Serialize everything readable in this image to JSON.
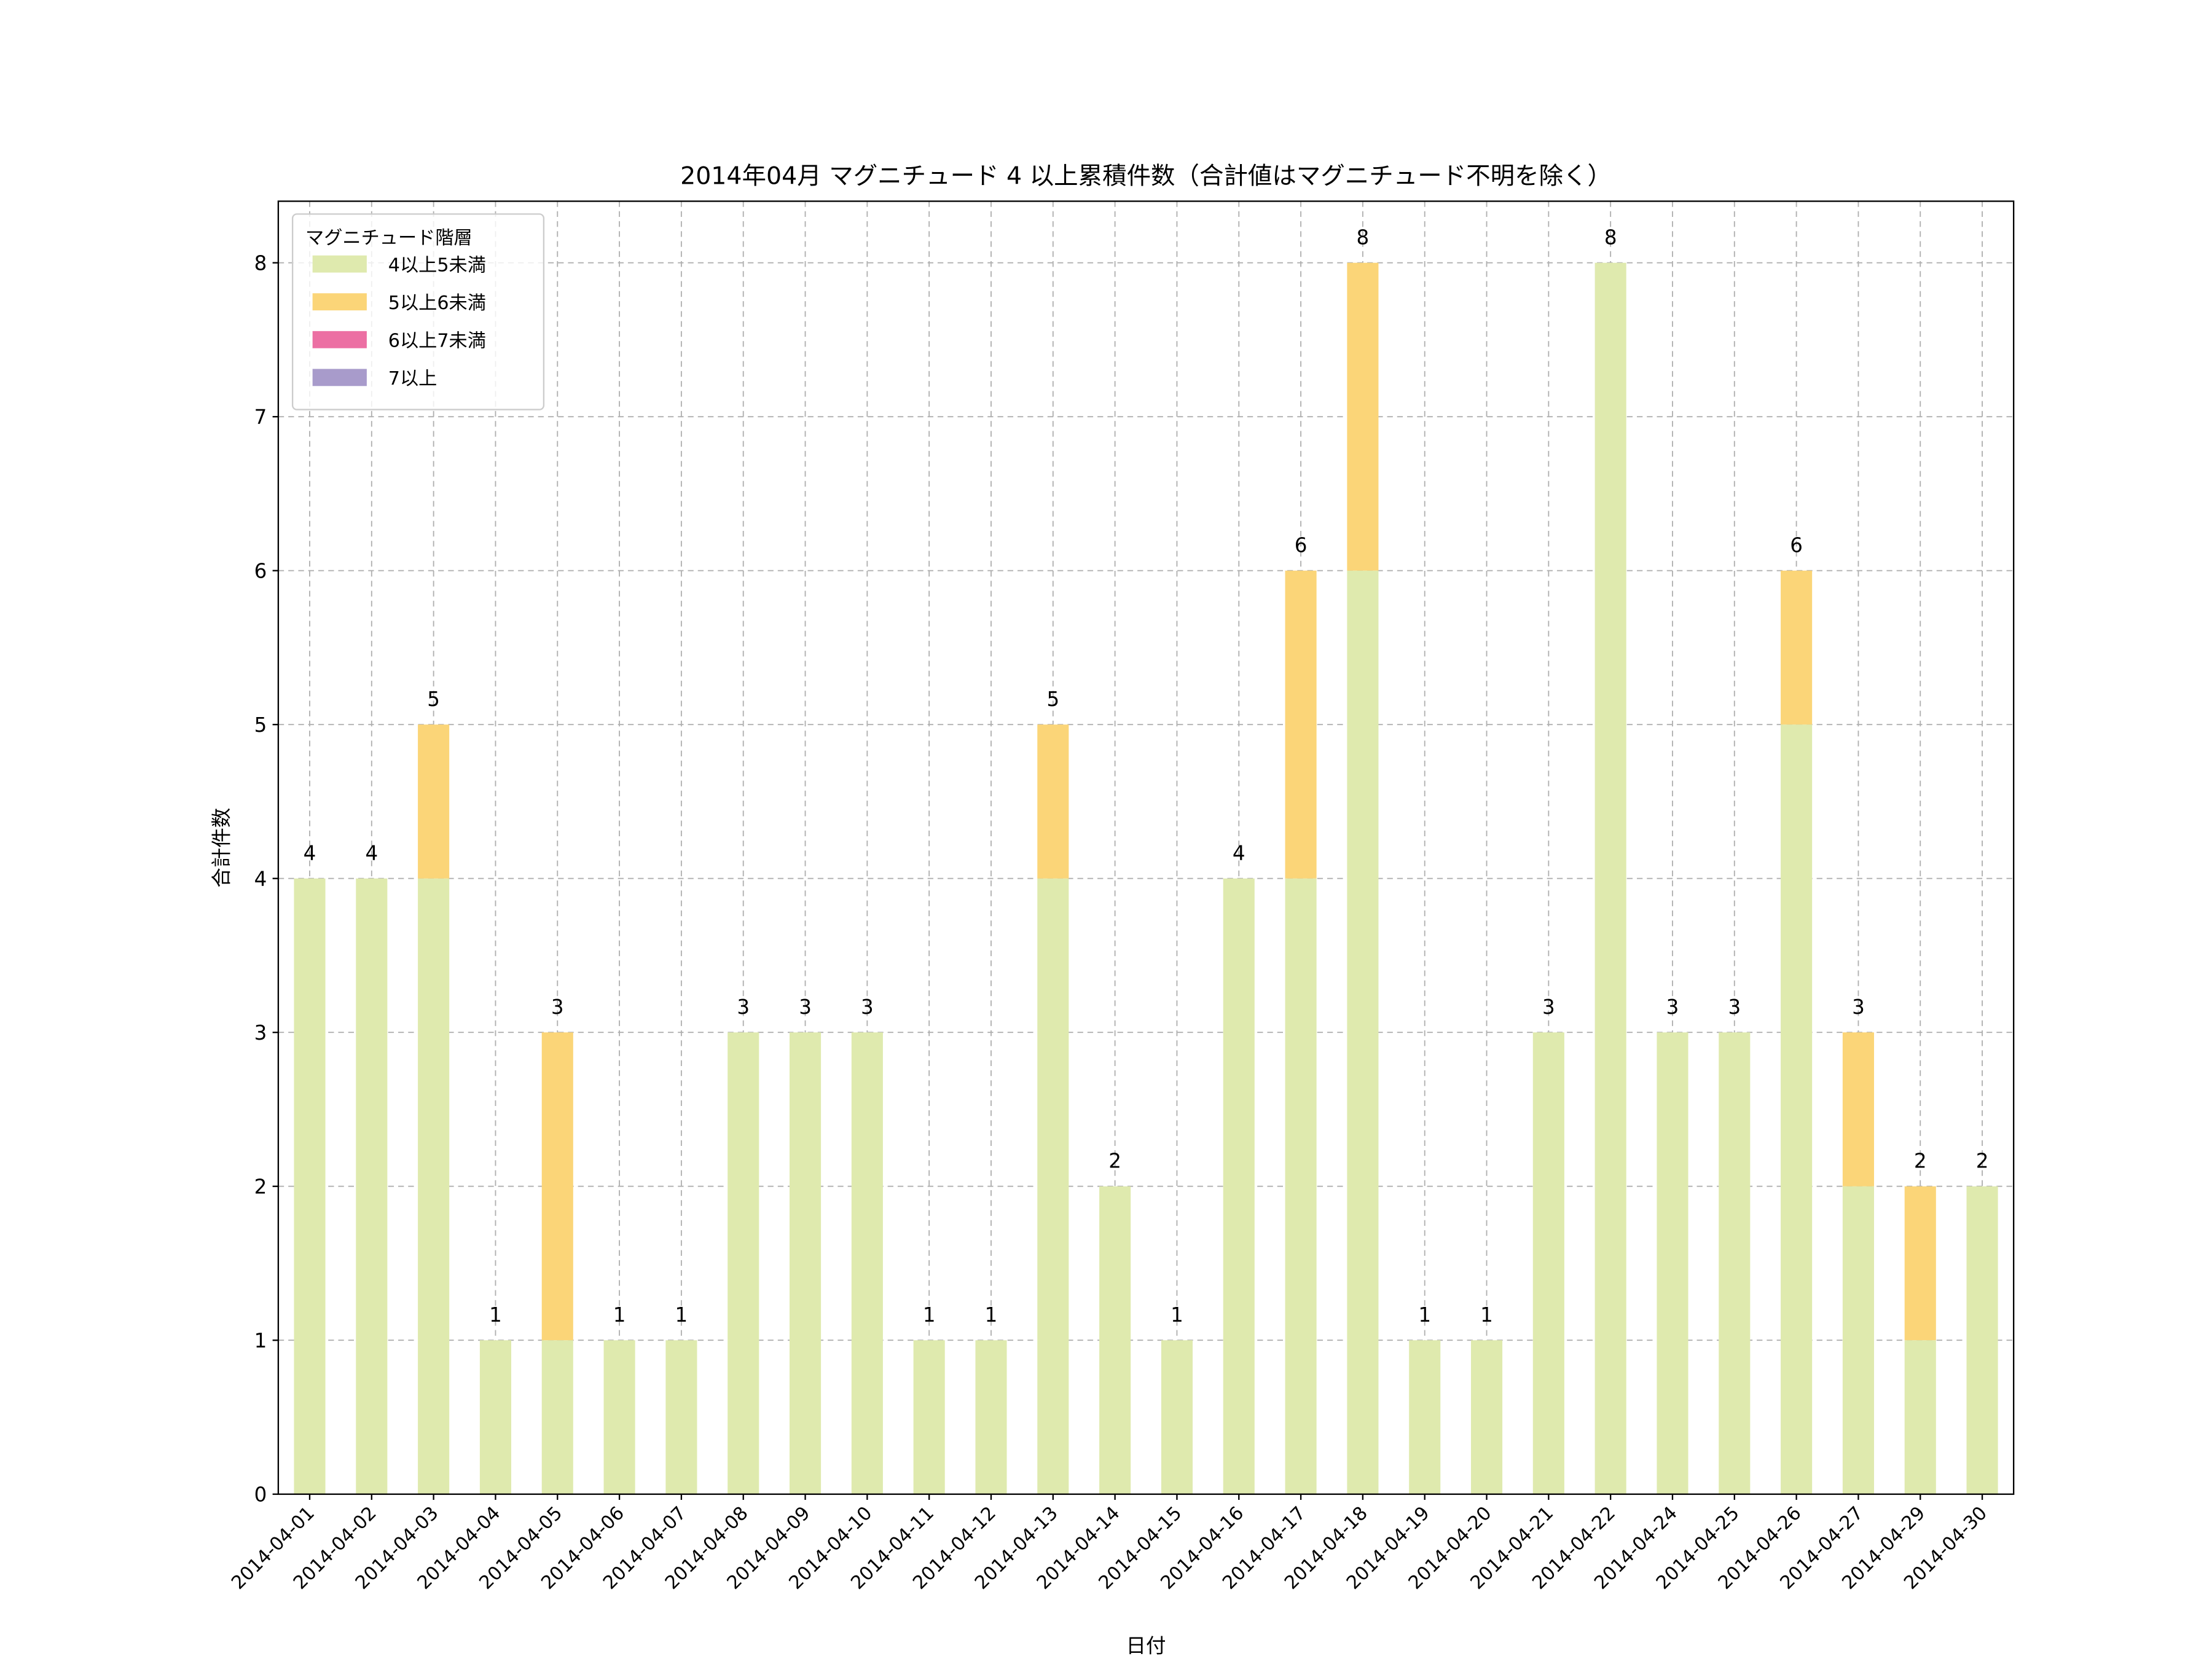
{
  "chart_data": {
    "type": "bar",
    "stacked": true,
    "title": "2014年04月 マグニチュード 4 以上累積件数（合計値はマグニチュード不明を除く）",
    "xlabel": "日付",
    "ylabel": "合計件数",
    "ylim": [
      0,
      8.4
    ],
    "yticks": [
      0,
      1,
      2,
      3,
      4,
      5,
      6,
      7,
      8
    ],
    "grid": true,
    "legend": {
      "title": "マグニチュード階層",
      "placement": "top-left"
    },
    "categories": [
      "2014-04-01",
      "2014-04-02",
      "2014-04-03",
      "2014-04-04",
      "2014-04-05",
      "2014-04-06",
      "2014-04-07",
      "2014-04-08",
      "2014-04-09",
      "2014-04-10",
      "2014-04-11",
      "2014-04-12",
      "2014-04-13",
      "2014-04-14",
      "2014-04-15",
      "2014-04-16",
      "2014-04-17",
      "2014-04-18",
      "2014-04-19",
      "2014-04-20",
      "2014-04-21",
      "2014-04-22",
      "2014-04-24",
      "2014-04-25",
      "2014-04-26",
      "2014-04-27",
      "2014-04-29",
      "2014-04-30"
    ],
    "series": [
      {
        "name": "4以上5未満",
        "color": "#dfeaae",
        "values": [
          4,
          4,
          4,
          1,
          1,
          1,
          1,
          3,
          3,
          3,
          1,
          1,
          4,
          2,
          1,
          4,
          4,
          6,
          1,
          1,
          3,
          8,
          3,
          3,
          5,
          2,
          1,
          2
        ]
      },
      {
        "name": "5以上6未満",
        "color": "#fbd578",
        "values": [
          0,
          0,
          1,
          0,
          2,
          0,
          0,
          0,
          0,
          0,
          0,
          0,
          1,
          0,
          0,
          0,
          2,
          2,
          0,
          0,
          0,
          0,
          0,
          0,
          1,
          1,
          1,
          0
        ]
      },
      {
        "name": "6以上7未満",
        "color": "#ec6fa3",
        "values": [
          0,
          0,
          0,
          0,
          0,
          0,
          0,
          0,
          0,
          0,
          0,
          0,
          0,
          0,
          0,
          0,
          0,
          0,
          0,
          0,
          0,
          0,
          0,
          0,
          0,
          0,
          0,
          0
        ]
      },
      {
        "name": "7以上",
        "color": "#a89bcb",
        "values": [
          0,
          0,
          0,
          0,
          0,
          0,
          0,
          0,
          0,
          0,
          0,
          0,
          0,
          0,
          0,
          0,
          0,
          0,
          0,
          0,
          0,
          0,
          0,
          0,
          0,
          0,
          0,
          0
        ]
      }
    ],
    "totals": [
      4,
      4,
      5,
      1,
      3,
      1,
      1,
      3,
      3,
      3,
      1,
      1,
      5,
      2,
      1,
      4,
      6,
      8,
      1,
      1,
      3,
      8,
      3,
      3,
      6,
      3,
      2,
      2
    ]
  }
}
